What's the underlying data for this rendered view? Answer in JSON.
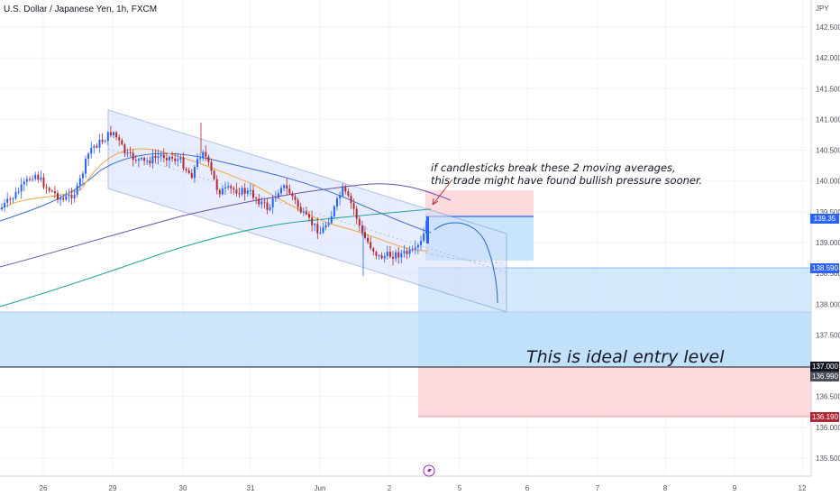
{
  "symbol_title": "U.S. Dollar / Japanese Yen, 1h, FXCM",
  "currency": "JPY",
  "annotations": {
    "line1": "if candlesticks break these 2 moving averages,",
    "line2": "this trade might have found bullish pressure sooner.",
    "entry_note": "This is ideal entry level"
  },
  "price_tags": {
    "level_upper": "138.590",
    "entry": "137.000",
    "entry_secondary": "136.990",
    "stop": "136.190",
    "current": "139.35"
  },
  "colors": {
    "up": "#2962ff",
    "down": "#b22833",
    "channel_fill": "#d4e0fb",
    "zone_blue": "#bbdefb",
    "zone_red": "#fcd6d9",
    "ma_orange": "#f5a442",
    "ma_blue": "#3b6fd4",
    "ma_purple": "#6a4fb0",
    "ma_teal": "#26a69a"
  },
  "chart_data": {
    "type": "candlestick",
    "title": "U.S. Dollar / Japanese Yen, 1h, FXCM",
    "y_axis_unit": "JPY",
    "ylim": [
      135.2,
      142.75
    ],
    "y_ticks": [
      "142.500",
      "142.000",
      "141.500",
      "141.000",
      "140.500",
      "140.000",
      "139.500",
      "139.000",
      "138.500",
      "138.000",
      "137.500",
      "137.000",
      "136.500",
      "136.000",
      "135.500"
    ],
    "x_ticks": [
      "26",
      "29",
      "30",
      "31",
      "Jun",
      "2",
      "5",
      "6",
      "7",
      "8",
      "9",
      "12"
    ],
    "price_levels": [
      138.59,
      137.0,
      136.99,
      136.19
    ],
    "grid": true
  },
  "footer_icon": "lightning-icon"
}
